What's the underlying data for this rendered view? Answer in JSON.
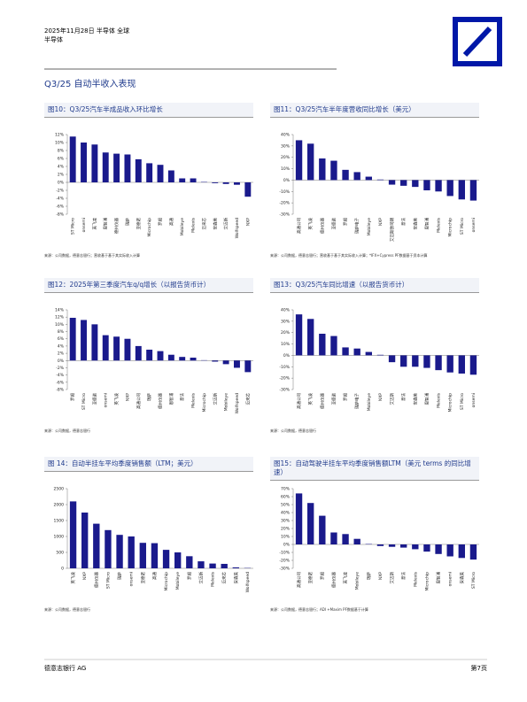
{
  "header": {
    "date_line": "2025年11月28日 半导体 全球",
    "sector": "半导体"
  },
  "section_title": "Q3/25 自动半收入表现",
  "chart_data": [
    {
      "type": "bar",
      "title": "图10：Q3/25汽车半成品收入环比增长",
      "color": "#1a1a8c",
      "categories": [
        "ST Micro",
        "onsemi",
        "英飞凌",
        "恩智浦",
        "德州仪器",
        "瑞萨",
        "亚德诺",
        "Microchip",
        "罗姆",
        "高通",
        "Mobileye",
        "Melexis",
        "迈来芯",
        "安森美",
        "艾迈斯",
        "Wolfspeed",
        "NXP"
      ],
      "values": [
        11.5,
        10,
        9.5,
        7.5,
        7.2,
        7,
        5.8,
        4.8,
        4.4,
        3,
        1,
        1,
        0.1,
        -0.2,
        -0.4,
        -0.6,
        -3.6
      ],
      "ylim": [
        -8,
        12
      ],
      "yticks": [
        {
          "value": -8,
          "label": "-8%"
        },
        {
          "value": -6,
          "label": "-6%"
        },
        {
          "value": -4,
          "label": "-4%"
        },
        {
          "value": -2,
          "label": "-2%"
        },
        {
          "value": 0,
          "label": "0%"
        },
        {
          "value": 2,
          "label": "2%"
        },
        {
          "value": 4,
          "label": "4%"
        },
        {
          "value": 6,
          "label": "6%"
        },
        {
          "value": 8,
          "label": "8%"
        },
        {
          "value": 10,
          "label": "10%"
        },
        {
          "value": 12,
          "label": "12%"
        }
      ],
      "source": "来源：公司数据，德意志银行；营收基于基于其实际收入计算"
    },
    {
      "type": "bar",
      "title": "图11：Q3/25汽车半年度营收同比增长（美元）",
      "color": "#1a1a8c",
      "categories": [
        "高通公司",
        "英飞凌",
        "德州仪器",
        "亚德诺",
        "罗姆",
        "瑞萨电子",
        "Mobileye",
        "NXP",
        "艾迈斯欧司朗",
        "意法",
        "安森美",
        "恩智浦",
        "Melexis",
        "Microchip",
        "ST Micro",
        "onsemi"
      ],
      "values": [
        35,
        32,
        19,
        17,
        9,
        7,
        3,
        0.5,
        -4,
        -5,
        -6,
        -9,
        -10,
        -14,
        -17,
        -18
      ],
      "ylim": [
        -30,
        40
      ],
      "yticks": [
        {
          "value": -30,
          "label": "-30%"
        },
        {
          "value": -20,
          "label": "-20%"
        },
        {
          "value": -10,
          "label": "-10%"
        },
        {
          "value": 0,
          "label": "0%"
        },
        {
          "value": 10,
          "label": "10%"
        },
        {
          "value": 20,
          "label": "20%"
        },
        {
          "value": 30,
          "label": "30%"
        },
        {
          "value": 40,
          "label": "40%"
        }
      ],
      "source": "来源：公司数据，德意志银行；营收基于基于其实际收入计算；*IFX+Cypress PF数据基于资本计算"
    },
    {
      "type": "bar",
      "title": "图12：2025年第三季度汽车q/q增长（以报告货币计）",
      "color": "#1a1a8c",
      "categories": [
        "罗姆",
        "ST Micro",
        "亚德诺",
        "onsemi",
        "英飞凌",
        "NXP",
        "高通公司",
        "瑞萨",
        "德州仪器",
        "恩智浦",
        "意法",
        "Melexis",
        "Microchip",
        "艾迈斯",
        "Mobileye",
        "Wolfspeed",
        "迈来芯"
      ],
      "values": [
        11.8,
        11.2,
        10,
        7,
        6.6,
        6,
        4,
        3,
        2.6,
        1.6,
        1,
        0.8,
        0.1,
        -0.3,
        -1,
        -2,
        -3.2
      ],
      "ylim": [
        -8,
        14
      ],
      "yticks": [
        {
          "value": -8,
          "label": "-8%"
        },
        {
          "value": -6,
          "label": "-6%"
        },
        {
          "value": -4,
          "label": "-4%"
        },
        {
          "value": -2,
          "label": "-2%"
        },
        {
          "value": 0,
          "label": "0%"
        },
        {
          "value": 2,
          "label": "2%"
        },
        {
          "value": 4,
          "label": "4%"
        },
        {
          "value": 6,
          "label": "6%"
        },
        {
          "value": 8,
          "label": "8%"
        },
        {
          "value": 10,
          "label": "10%"
        },
        {
          "value": 12,
          "label": "12%"
        },
        {
          "value": 14,
          "label": "14%"
        }
      ],
      "source": "来源：公司数据，德意志银行"
    },
    {
      "type": "bar",
      "title": "图13：Q3/25汽车同比增速（以报告货币计）",
      "color": "#1a1a8c",
      "categories": [
        "高通公司",
        "英飞凌",
        "德州仪器",
        "亚德诺",
        "罗姆",
        "瑞萨电子",
        "Mobileye",
        "NXP",
        "艾迈斯",
        "意法",
        "安森美",
        "恩智浦",
        "Melexis",
        "Microchip",
        "ST Micro",
        "onsemi"
      ],
      "values": [
        36,
        32,
        19,
        17,
        7,
        6,
        3,
        0.5,
        -6,
        -10,
        -10,
        -11,
        -13,
        -15,
        -16,
        -17
      ],
      "ylim": [
        -30,
        40
      ],
      "yticks": [
        {
          "value": -30,
          "label": "-30%"
        },
        {
          "value": -20,
          "label": "-20%"
        },
        {
          "value": -10,
          "label": "-10%"
        },
        {
          "value": 0,
          "label": "0%"
        },
        {
          "value": 10,
          "label": "10%"
        },
        {
          "value": 20,
          "label": "20%"
        },
        {
          "value": 30,
          "label": "30%"
        },
        {
          "value": 40,
          "label": "40%"
        }
      ],
      "source": "来源：公司数据，德意志银行"
    },
    {
      "type": "bar",
      "title": "图 14：自动半挂车平均季度销售额（LTM；美元）",
      "color": "#1a1a8c",
      "categories": [
        "英飞凌",
        "NXP",
        "德州仪器",
        "ST Micro",
        "瑞萨",
        "onsemi",
        "亚德诺",
        "高通",
        "Microchip",
        "Mobileye",
        "罗姆",
        "艾迈斯",
        "Melexis",
        "迈来芯",
        "安森美",
        "Wolfspeed"
      ],
      "values": [
        2100,
        1750,
        1400,
        1200,
        1050,
        1000,
        800,
        790,
        580,
        500,
        380,
        220,
        150,
        140,
        30,
        10
      ],
      "ylim": [
        0,
        2500
      ],
      "yticks": [
        0,
        500,
        1000,
        1500,
        2000,
        2500
      ],
      "source": "来源：公司数据，德意志银行"
    },
    {
      "type": "bar",
      "title": "图15：自动驾驶半挂车平均季度销售额LTM（美元 terms 的同比增速）",
      "color": "#1a1a8c",
      "categories": [
        "高通公司",
        "亚德诺",
        "罗姆",
        "德州仪器",
        "英飞凌",
        "Mobileye",
        "瑞萨",
        "NXP",
        "艾迈斯",
        "意法",
        "Melexis",
        "Microchip",
        "恩智浦",
        "onsemi",
        "安森美",
        "ST Micro"
      ],
      "values": [
        64,
        52,
        36,
        15,
        13,
        7,
        0.5,
        -2,
        -3,
        -4,
        -6,
        -9,
        -12,
        -15,
        -17,
        -19
      ],
      "ylim": [
        -30,
        70
      ],
      "yticks": [
        {
          "value": -30,
          "label": "-30%"
        },
        {
          "value": -20,
          "label": "-20%"
        },
        {
          "value": -10,
          "label": "-10%"
        },
        {
          "value": 0,
          "label": "0%"
        },
        {
          "value": 10,
          "label": "10%"
        },
        {
          "value": 20,
          "label": "20%"
        },
        {
          "value": 30,
          "label": "30%"
        },
        {
          "value": 40,
          "label": "40%"
        },
        {
          "value": 50,
          "label": "50%"
        },
        {
          "value": 60,
          "label": "60%"
        },
        {
          "value": 70,
          "label": "70%"
        }
      ],
      "source": "来源：公司数据，德意志银行；ADI +Maxim PF数据基于计算"
    }
  ],
  "footer": {
    "company": "德意志银行 AG",
    "page": "第7页"
  }
}
